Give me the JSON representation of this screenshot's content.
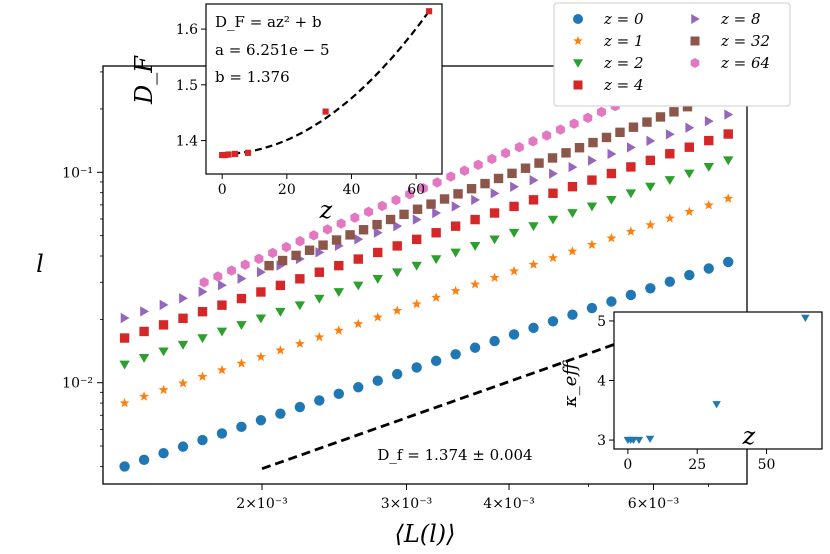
{
  "chart_data": [
    {
      "type": "scatter",
      "xscale": "log",
      "yscale": "log",
      "xlabel": "⟨L(l)⟩",
      "ylabel": "l",
      "xlim": [
        0.00128,
        0.0078
      ],
      "ylim": [
        0.0033,
        0.32
      ],
      "x_ticks": [
        {
          "value": 0.002,
          "label": "2×10⁻³"
        },
        {
          "value": 0.003,
          "label": "3×10⁻³"
        },
        {
          "value": 0.004,
          "label": "4×10⁻³"
        },
        {
          "value": 0.006,
          "label": "6×10⁻³"
        }
      ],
      "y_ticks": [
        {
          "value": 0.01,
          "label": "10⁻²"
        },
        {
          "value": 0.1,
          "label": "10⁻¹"
        }
      ],
      "series": [
        {
          "name": "z = 0",
          "color": "#1f77b4",
          "marker": "circle",
          "x0": 0.00136,
          "x1": 0.0074,
          "y0": 0.004,
          "y1": 0.0375
        },
        {
          "name": "z = 1",
          "color": "#ff7f0e",
          "marker": "star",
          "x0": 0.00136,
          "x1": 0.0074,
          "y0": 0.008,
          "y1": 0.075
        },
        {
          "name": "z = 2",
          "color": "#2ca02c",
          "marker": "triangle-down",
          "x0": 0.00136,
          "x1": 0.0074,
          "y0": 0.0122,
          "y1": 0.114
        },
        {
          "name": "z = 4",
          "color": "#d62728",
          "marker": "square",
          "x0": 0.00136,
          "x1": 0.0074,
          "y0": 0.0163,
          "y1": 0.152
        },
        {
          "name": "z = 8",
          "color": "#9467bd",
          "marker": "triangle-right",
          "x0": 0.00136,
          "x1": 0.0074,
          "y0": 0.0203,
          "y1": 0.188
        },
        {
          "name": "z = 32",
          "color": "#8c564b",
          "marker": "square",
          "x0": 0.00204,
          "x1": 0.0066,
          "y0": 0.036,
          "y1": 0.205
        },
        {
          "name": "z = 64",
          "color": "#e377c2",
          "marker": "hexagon",
          "x0": 0.0017,
          "x1": 0.0056,
          "y0": 0.03,
          "y1": 0.22
        }
      ],
      "fit_line": {
        "x": [
          0.002,
          0.0062
        ],
        "y": [
          0.0039,
          0.0185
        ]
      },
      "annotation": "D_f = 1.374 ± 0.004",
      "legend": {
        "placement": "top-right",
        "entries": [
          "z = 0",
          "z = 1",
          "z = 2",
          "z = 4",
          "z = 8",
          "z = 32",
          "z = 64"
        ]
      }
    },
    {
      "type": "scatter",
      "title_lines": [
        "D_F = az² + b",
        "a = 6.251e − 5",
        "b = 1.376"
      ],
      "xlabel": "z",
      "ylabel": "D_F",
      "xlim": [
        -5,
        68
      ],
      "ylim": [
        1.34,
        1.645
      ],
      "x_ticks": [
        0,
        20,
        40,
        60
      ],
      "y_ticks": [
        1.4,
        1.5,
        1.6
      ],
      "points": [
        {
          "x": 0,
          "y": 1.374
        },
        {
          "x": 1,
          "y": 1.374
        },
        {
          "x": 2,
          "y": 1.375
        },
        {
          "x": 4,
          "y": 1.376
        },
        {
          "x": 8,
          "y": 1.378
        },
        {
          "x": 32,
          "y": 1.452
        },
        {
          "x": 64,
          "y": 1.632
        }
      ],
      "fit": {
        "a": 6.251e-05,
        "b": 1.376
      },
      "marker_color": "#d62728"
    },
    {
      "type": "scatter",
      "xlabel": "z",
      "ylabel": "κ_eff",
      "xlim": [
        -5,
        70
      ],
      "ylim": [
        2.85,
        5.15
      ],
      "x_ticks": [
        0,
        25,
        50
      ],
      "y_ticks": [
        3,
        4,
        5
      ],
      "points": [
        {
          "x": 0,
          "y": 3.0
        },
        {
          "x": 1,
          "y": 3.0
        },
        {
          "x": 2,
          "y": 3.0
        },
        {
          "x": 4,
          "y": 3.0
        },
        {
          "x": 8,
          "y": 3.02
        },
        {
          "x": 32,
          "y": 3.6
        },
        {
          "x": 64,
          "y": 5.05
        }
      ],
      "marker_color": "#1f77b4"
    }
  ]
}
